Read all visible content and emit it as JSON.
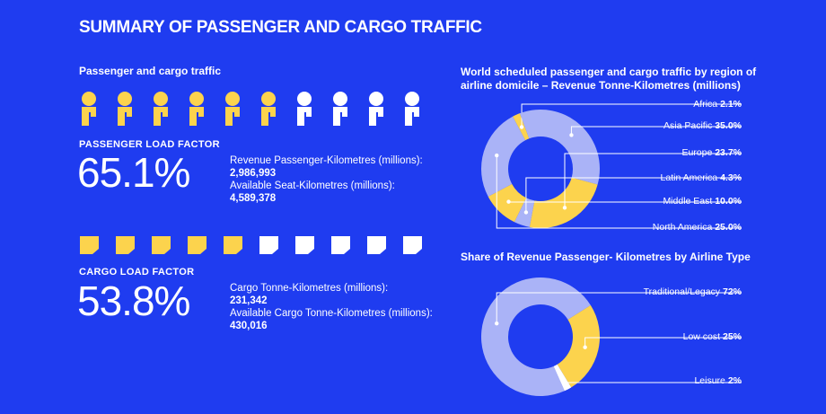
{
  "title": "SUMMARY OF PASSENGER AND CARGO TRAFFIC",
  "left_heading": "Passenger and cargo traffic",
  "colors": {
    "background": "#1f3cf0",
    "highlight": "#fcd34d",
    "muted": "#aab3f7",
    "white": "#ffffff"
  },
  "passenger": {
    "icon": "person-icon",
    "icons_total": 10,
    "icons_filled": 6,
    "label": "PASSENGER LOAD FACTOR",
    "value": "65.1%",
    "rpk_label": "Revenue Passenger-Kilometres (millions):",
    "rpk_value": "2,986,993",
    "ask_label": "Available Seat-Kilometres (millions):",
    "ask_value": "4,589,378"
  },
  "cargo": {
    "icon": "cargo-doc-icon",
    "icons_total": 10,
    "icons_filled": 5,
    "label": "CARGO LOAD FACTOR",
    "value": "53.8%",
    "ctk_label": "Cargo Tonne-Kilometres (millions):",
    "ctk_value": "231,342",
    "actk_label": "Available Cargo Tonne-Kilometres (millions):",
    "actk_value": "430,016"
  },
  "chart_data": [
    {
      "type": "pie",
      "title": "World scheduled passenger and cargo traffic by region of airline domicile – Revenue Tonne-Kilometres (millions)",
      "slices": [
        {
          "name": "Africa",
          "value": 2.1,
          "label": "2.1%"
        },
        {
          "name": "Asia Pacific",
          "value": 35.0,
          "label": "35.0%"
        },
        {
          "name": "Europe",
          "value": 23.7,
          "label": "23.7%"
        },
        {
          "name": "Latin America",
          "value": 4.3,
          "label": "4.3%"
        },
        {
          "name": "Middle East",
          "value": 10.0,
          "label": "10.0%"
        },
        {
          "name": "North America",
          "value": 25.0,
          "label": "25.0%"
        }
      ]
    },
    {
      "type": "pie",
      "title": "Share of Revenue Passenger- Kilometres by Airline Type",
      "slices": [
        {
          "name": "Traditional/Legacy",
          "value": 72,
          "label": "72%"
        },
        {
          "name": "Low cost",
          "value": 25,
          "label": "25%"
        },
        {
          "name": "Leisure",
          "value": 2,
          "label": "2%"
        }
      ]
    }
  ]
}
